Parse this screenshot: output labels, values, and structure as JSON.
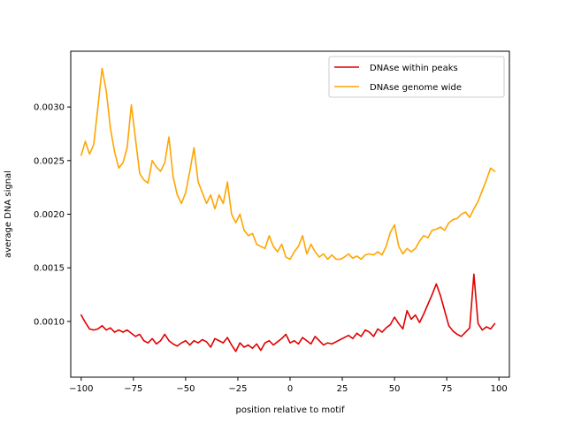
{
  "chart_data": {
    "type": "line",
    "xlabel": "position relative to motif",
    "ylabel": "average DNA signal",
    "xlim": [
      -105,
      105
    ],
    "ylim": [
      0.00048,
      0.00352
    ],
    "x_ticks": [
      -100,
      -75,
      -50,
      -25,
      0,
      25,
      50,
      75,
      100
    ],
    "y_ticks": [
      0.001,
      0.0015,
      0.002,
      0.0025,
      0.003
    ],
    "y_tick_labels": [
      "0.0010",
      "0.0015",
      "0.0020",
      "0.0025",
      "0.0030"
    ],
    "grid": false,
    "legend_position": "top-right",
    "series": [
      {
        "name": "DNAse within peaks",
        "color": "#e00000",
        "x": [
          -100,
          -98,
          -96,
          -94,
          -92,
          -90,
          -88,
          -86,
          -84,
          -82,
          -80,
          -78,
          -76,
          -74,
          -72,
          -70,
          -68,
          -66,
          -64,
          -62,
          -60,
          -58,
          -56,
          -54,
          -52,
          -50,
          -48,
          -46,
          -44,
          -42,
          -40,
          -38,
          -36,
          -34,
          -32,
          -30,
          -28,
          -26,
          -24,
          -22,
          -20,
          -18,
          -16,
          -14,
          -12,
          -10,
          -8,
          -6,
          -4,
          -2,
          0,
          2,
          4,
          6,
          8,
          10,
          12,
          14,
          16,
          18,
          20,
          22,
          24,
          26,
          28,
          30,
          32,
          34,
          36,
          38,
          40,
          42,
          44,
          46,
          48,
          50,
          52,
          54,
          56,
          58,
          60,
          62,
          64,
          66,
          68,
          70,
          72,
          74,
          76,
          78,
          80,
          82,
          84,
          86,
          88,
          90,
          92,
          94,
          96,
          98
        ],
        "y": [
          0.00106,
          0.00099,
          0.00093,
          0.00092,
          0.00093,
          0.00096,
          0.00092,
          0.00094,
          0.0009,
          0.00092,
          0.0009,
          0.00092,
          0.00089,
          0.00086,
          0.00088,
          0.00082,
          0.0008,
          0.00084,
          0.00079,
          0.00082,
          0.00088,
          0.00082,
          0.00079,
          0.00077,
          0.0008,
          0.00082,
          0.00078,
          0.00082,
          0.0008,
          0.00083,
          0.00081,
          0.00076,
          0.00084,
          0.00082,
          0.0008,
          0.00085,
          0.00078,
          0.00072,
          0.0008,
          0.00076,
          0.00078,
          0.00075,
          0.00079,
          0.00073,
          0.0008,
          0.00082,
          0.00078,
          0.00081,
          0.00084,
          0.00088,
          0.0008,
          0.00082,
          0.00079,
          0.00085,
          0.00082,
          0.00079,
          0.00086,
          0.00082,
          0.00078,
          0.0008,
          0.00079,
          0.00081,
          0.00083,
          0.00085,
          0.00087,
          0.00084,
          0.00089,
          0.00086,
          0.00092,
          0.0009,
          0.00086,
          0.00093,
          0.0009,
          0.00094,
          0.00097,
          0.00104,
          0.00098,
          0.00093,
          0.0011,
          0.00102,
          0.00106,
          0.00099,
          0.00107,
          0.00116,
          0.00125,
          0.00135,
          0.00124,
          0.0011,
          0.00096,
          0.00091,
          0.00088,
          0.00086,
          0.0009,
          0.00094,
          0.00144,
          0.00098,
          0.00092,
          0.00095,
          0.00093,
          0.00098
        ]
      },
      {
        "name": "DNAse genome wide",
        "color": "#ffa500",
        "x": [
          -100,
          -98,
          -96,
          -94,
          -92,
          -90,
          -88,
          -86,
          -84,
          -82,
          -80,
          -78,
          -76,
          -74,
          -72,
          -70,
          -68,
          -66,
          -64,
          -62,
          -60,
          -58,
          -56,
          -54,
          -52,
          -50,
          -48,
          -46,
          -44,
          -42,
          -40,
          -38,
          -36,
          -34,
          -32,
          -30,
          -28,
          -26,
          -24,
          -22,
          -20,
          -18,
          -16,
          -14,
          -12,
          -10,
          -8,
          -6,
          -4,
          -2,
          0,
          2,
          4,
          6,
          8,
          10,
          12,
          14,
          16,
          18,
          20,
          22,
          24,
          26,
          28,
          30,
          32,
          34,
          36,
          38,
          40,
          42,
          44,
          46,
          48,
          50,
          52,
          54,
          56,
          58,
          60,
          62,
          64,
          66,
          68,
          70,
          72,
          74,
          76,
          78,
          80,
          82,
          84,
          86,
          88,
          90,
          92,
          94,
          96,
          98
        ],
        "y": [
          0.00255,
          0.00268,
          0.00256,
          0.00265,
          0.003,
          0.00336,
          0.00315,
          0.0028,
          0.00258,
          0.00243,
          0.00248,
          0.00262,
          0.00302,
          0.0027,
          0.00238,
          0.00232,
          0.00229,
          0.0025,
          0.00244,
          0.0024,
          0.00248,
          0.00272,
          0.00235,
          0.00218,
          0.0021,
          0.0022,
          0.0024,
          0.00262,
          0.0023,
          0.0022,
          0.0021,
          0.00218,
          0.00205,
          0.00218,
          0.0021,
          0.0023,
          0.002,
          0.00192,
          0.002,
          0.00185,
          0.0018,
          0.00182,
          0.00172,
          0.0017,
          0.00168,
          0.0018,
          0.0017,
          0.00165,
          0.00172,
          0.0016,
          0.00158,
          0.00165,
          0.0017,
          0.0018,
          0.00163,
          0.00172,
          0.00165,
          0.0016,
          0.00163,
          0.00158,
          0.00162,
          0.00158,
          0.00158,
          0.0016,
          0.00163,
          0.00159,
          0.00161,
          0.00158,
          0.00162,
          0.00163,
          0.00162,
          0.00165,
          0.00162,
          0.0017,
          0.00183,
          0.0019,
          0.0017,
          0.00163,
          0.00168,
          0.00165,
          0.00168,
          0.00175,
          0.0018,
          0.00178,
          0.00185,
          0.00186,
          0.00188,
          0.00185,
          0.00192,
          0.00195,
          0.00196,
          0.002,
          0.00202,
          0.00197,
          0.00205,
          0.00212,
          0.00222,
          0.00232,
          0.00243,
          0.0024
        ]
      }
    ]
  }
}
